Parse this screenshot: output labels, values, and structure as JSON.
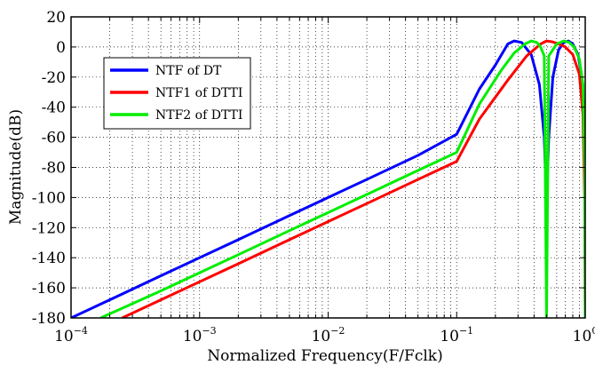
{
  "chart_data": {
    "type": "line",
    "xlabel": "Normalized Frequency(F/Fclk)",
    "ylabel": "Magnitude(dB)",
    "x_scale": "log",
    "xlim": [
      0.0001,
      1
    ],
    "ylim": [
      -180,
      20
    ],
    "x_ticks": [
      {
        "value": 0.0001,
        "base": "10",
        "exp": "−4"
      },
      {
        "value": 0.001,
        "base": "10",
        "exp": "−3"
      },
      {
        "value": 0.01,
        "base": "10",
        "exp": "−2"
      },
      {
        "value": 0.1,
        "base": "10",
        "exp": "−1"
      },
      {
        "value": 1,
        "base": "10",
        "exp": "0"
      }
    ],
    "y_ticks": [
      "20",
      "0",
      "-20",
      "-40",
      "-60",
      "-80",
      "-100",
      "-120",
      "-140",
      "-160",
      "-180"
    ],
    "grid": true,
    "legend_position": "upper-left",
    "series": [
      {
        "name": "NTF of DT",
        "color": "#0000ff",
        "points": [
          [
            0.0001,
            -180
          ],
          [
            0.0002,
            -168
          ],
          [
            0.0005,
            -152
          ],
          [
            0.001,
            -140
          ],
          [
            0.002,
            -128
          ],
          [
            0.005,
            -112
          ],
          [
            0.01,
            -100
          ],
          [
            0.02,
            -88
          ],
          [
            0.05,
            -72
          ],
          [
            0.1,
            -58
          ],
          [
            0.15,
            -28
          ],
          [
            0.2,
            -12
          ],
          [
            0.25,
            2
          ],
          [
            0.28,
            4
          ],
          [
            0.32,
            3
          ],
          [
            0.38,
            -5
          ],
          [
            0.44,
            -25
          ],
          [
            0.48,
            -60
          ],
          [
            0.5,
            -105
          ],
          [
            0.52,
            -60
          ],
          [
            0.56,
            -20
          ],
          [
            0.62,
            -2
          ],
          [
            0.68,
            3
          ],
          [
            0.74,
            4
          ],
          [
            0.8,
            2
          ],
          [
            0.88,
            -5
          ],
          [
            0.94,
            -20
          ],
          [
            0.98,
            -45
          ],
          [
            1.0,
            -65
          ]
        ]
      },
      {
        "name": "NTF1 of DTTI",
        "color": "#ff0000",
        "points": [
          [
            0.00025,
            -180
          ],
          [
            0.0005,
            -168
          ],
          [
            0.001,
            -156
          ],
          [
            0.002,
            -144
          ],
          [
            0.005,
            -128
          ],
          [
            0.01,
            -116
          ],
          [
            0.02,
            -104
          ],
          [
            0.05,
            -88
          ],
          [
            0.1,
            -76
          ],
          [
            0.15,
            -48
          ],
          [
            0.25,
            -22
          ],
          [
            0.35,
            -6
          ],
          [
            0.45,
            2
          ],
          [
            0.5,
            4
          ],
          [
            0.55,
            3.5
          ],
          [
            0.62,
            2
          ],
          [
            0.7,
            0
          ],
          [
            0.8,
            -5
          ],
          [
            0.9,
            -18
          ],
          [
            0.96,
            -45
          ],
          [
            0.99,
            -100
          ],
          [
            1.0,
            -180
          ]
        ]
      },
      {
        "name": "NTF2 of DTTI",
        "color": "#00ee00",
        "points": [
          [
            0.00017,
            -180
          ],
          [
            0.0005,
            -162
          ],
          [
            0.001,
            -150
          ],
          [
            0.002,
            -138
          ],
          [
            0.005,
            -122
          ],
          [
            0.01,
            -110
          ],
          [
            0.02,
            -98
          ],
          [
            0.05,
            -82
          ],
          [
            0.1,
            -70
          ],
          [
            0.15,
            -38
          ],
          [
            0.22,
            -16
          ],
          [
            0.28,
            -4
          ],
          [
            0.34,
            2
          ],
          [
            0.38,
            4
          ],
          [
            0.42,
            3
          ],
          [
            0.45,
            0
          ],
          [
            0.48,
            -6
          ],
          [
            0.5,
            -180
          ],
          [
            0.52,
            -6
          ],
          [
            0.6,
            2
          ],
          [
            0.68,
            4
          ],
          [
            0.75,
            3
          ],
          [
            0.82,
            0
          ],
          [
            0.9,
            -8
          ],
          [
            0.96,
            -25
          ],
          [
            0.99,
            -80
          ],
          [
            1.0,
            -180
          ]
        ]
      }
    ]
  }
}
